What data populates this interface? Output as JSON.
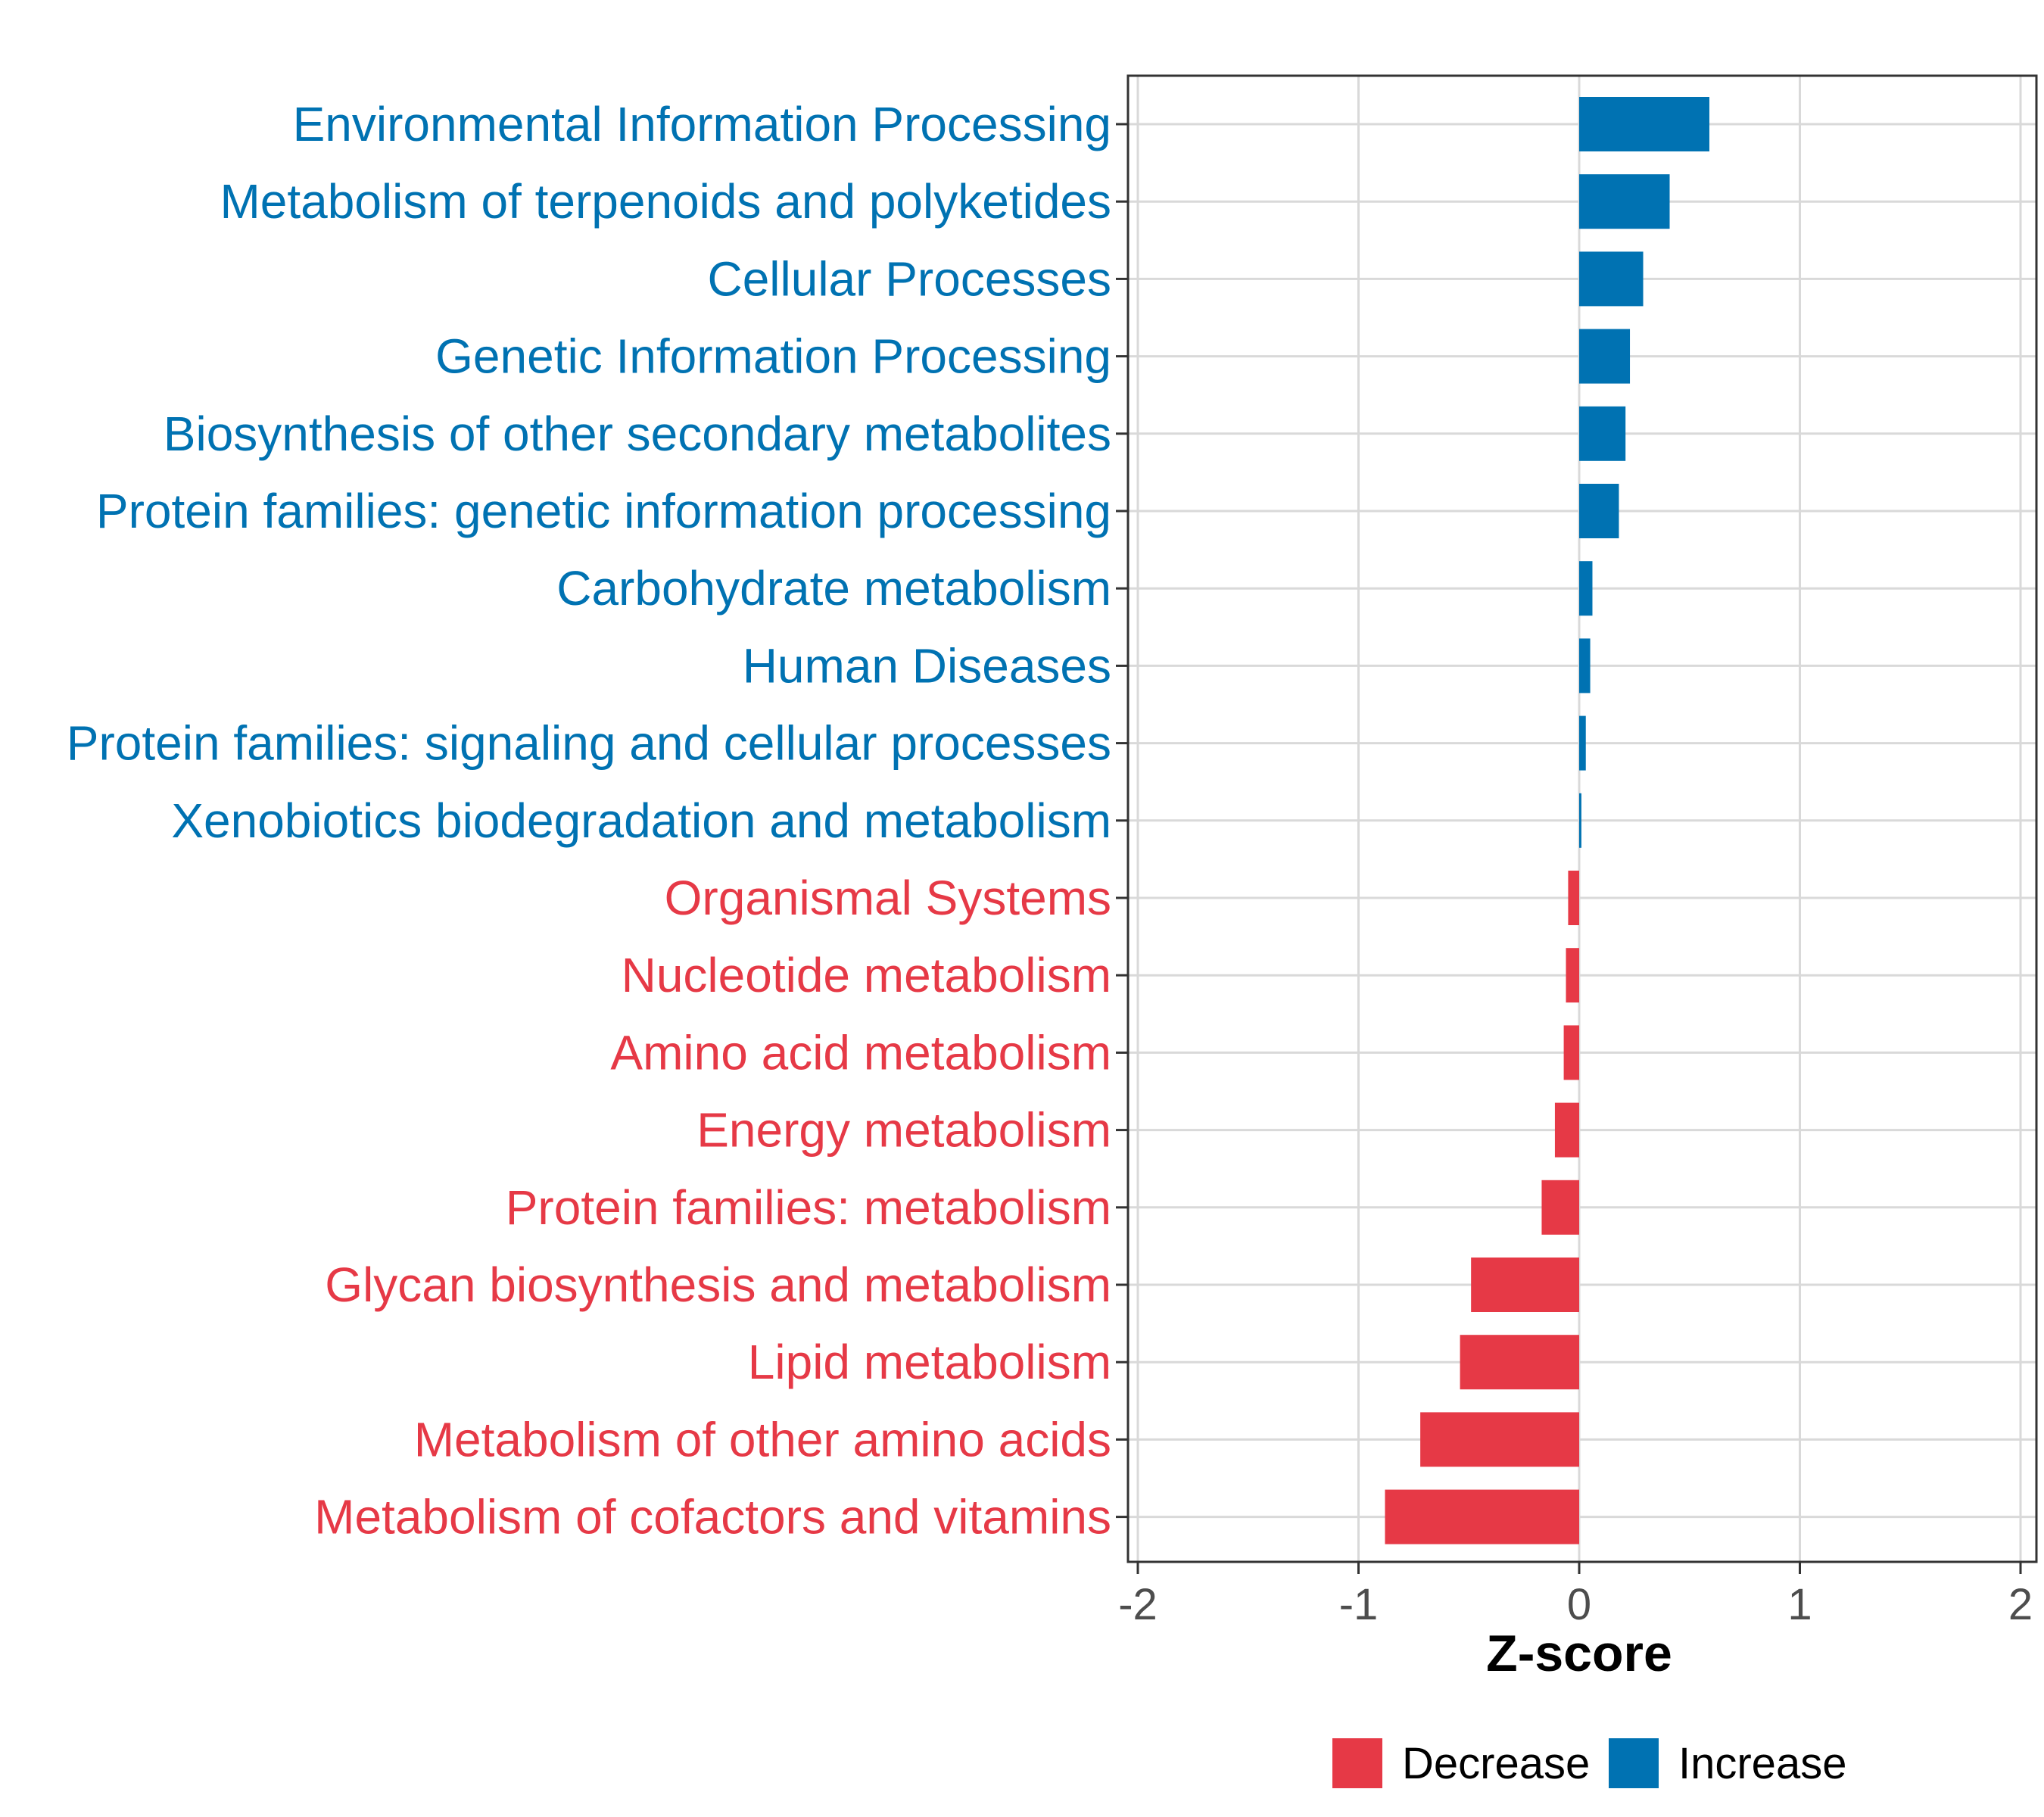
{
  "chart_data": {
    "type": "bar",
    "orientation": "horizontal",
    "title": "",
    "xlabel": "Z-score",
    "ylabel": "",
    "xlim": [
      -2,
      2
    ],
    "xticks": [
      -2,
      -1,
      0,
      1,
      2
    ],
    "grid": true,
    "legend_position": "bottom",
    "categories": [
      "Environmental Information Processing",
      "Metabolism of terpenoids and polyketides",
      "Cellular Processes",
      "Genetic Information Processing",
      "Biosynthesis of other secondary metabolites",
      "Protein families: genetic information processing",
      "Carbohydrate metabolism",
      "Human Diseases",
      "Protein families: signaling and cellular processes",
      "Xenobiotics biodegradation and metabolism",
      "Organismal Systems",
      "Nucleotide metabolism",
      "Amino acid metabolism",
      "Energy metabolism",
      "Protein families: metabolism",
      "Glycan biosynthesis and metabolism",
      "Lipid metabolism",
      "Metabolism of other amino acids",
      "Metabolism of cofactors and vitamins"
    ],
    "values": [
      0.59,
      0.41,
      0.29,
      0.23,
      0.21,
      0.18,
      0.06,
      0.05,
      0.03,
      0.01,
      -0.05,
      -0.06,
      -0.07,
      -0.11,
      -0.17,
      -0.49,
      -0.54,
      -0.72,
      -0.88
    ],
    "groups": [
      "Increase",
      "Increase",
      "Increase",
      "Increase",
      "Increase",
      "Increase",
      "Increase",
      "Increase",
      "Increase",
      "Increase",
      "Decrease",
      "Decrease",
      "Decrease",
      "Decrease",
      "Decrease",
      "Decrease",
      "Decrease",
      "Decrease",
      "Decrease"
    ],
    "legend": [
      {
        "name": "Decrease",
        "color": "#E63946"
      },
      {
        "name": "Increase",
        "color": "#0072B2"
      }
    ]
  },
  "colors": {
    "increase": "#0072B2",
    "decrease": "#E63946",
    "grid": "#d9d9d9",
    "border": "#333333",
    "tick_text": "#4d4d4d"
  }
}
